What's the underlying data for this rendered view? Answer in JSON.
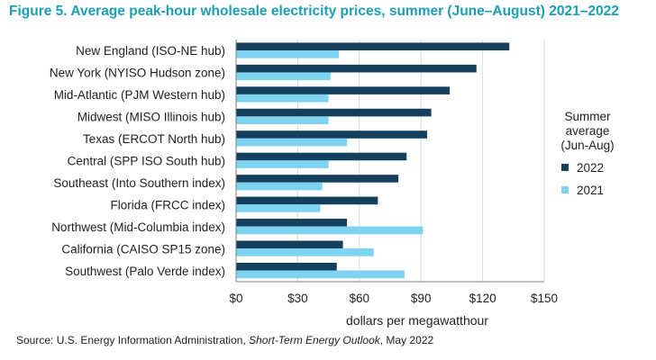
{
  "title": "Figure 5. Average peak-hour wholesale electricity prices, summer (June–August) 2021–2022",
  "source": {
    "prefix": "Source: U.S. Energy Information Administration, ",
    "publication": "Short-Term Energy Outlook",
    "suffix": ", May 2022"
  },
  "colors": {
    "series_2022": "#14405e",
    "series_2021": "#7dd3f0"
  },
  "chart_data": {
    "type": "bar",
    "orientation": "horizontal",
    "categories": [
      "New England (ISO-NE hub)",
      "New York (NYISO Hudson zone)",
      "Mid-Atlantic (PJM Western hub)",
      "Midwest (MISO Illinois hub)",
      "Texas (ERCOT North hub)",
      "Central (SPP ISO South hub)",
      "Southeast (Into Southern index)",
      "Florida (FRCC index)",
      "Northwest (Mid-Columbia index)",
      "California (CAISO SP15 zone)",
      "Southwest (Palo Verde index)"
    ],
    "series": [
      {
        "name": "2022",
        "values": [
          133,
          117,
          104,
          95,
          93,
          83,
          79,
          69,
          54,
          52,
          49
        ]
      },
      {
        "name": "2021",
        "values": [
          50,
          46,
          45,
          45,
          54,
          45,
          42,
          41,
          91,
          67,
          82
        ]
      }
    ],
    "xlabel": "dollars per megawatthour",
    "xlim": [
      0,
      150
    ],
    "xticks": [
      0,
      30,
      60,
      90,
      120,
      150
    ],
    "xtick_labels": [
      "$0",
      "$30",
      "$60",
      "$90",
      "$120",
      "$150"
    ],
    "legend_title": [
      "Summer",
      "average",
      "(Jun-Aug)"
    ],
    "legend_placement": "right",
    "grid": "vertical"
  }
}
